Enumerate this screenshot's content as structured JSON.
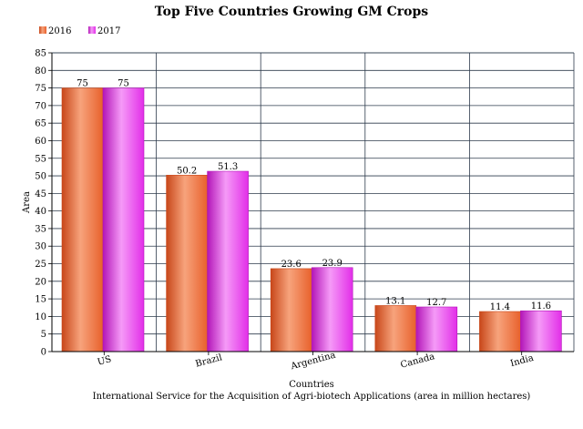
{
  "chart_data": {
    "type": "bar",
    "title": "Top Five Countries Growing GM Crops",
    "categories": [
      "US",
      "Brazil",
      "Argentina",
      "Canada",
      "India"
    ],
    "series": [
      {
        "name": "2016",
        "values": [
          75,
          50.2,
          23.6,
          13.1,
          11.4
        ],
        "labels": [
          "75",
          "50.2",
          "23.6",
          "13.1",
          "11.4"
        ],
        "color": "#e8612c",
        "color_light": "#f7a37c",
        "color_dark": "#c8471a"
      },
      {
        "name": "2017",
        "values": [
          75,
          51.3,
          23.9,
          12.7,
          11.6
        ],
        "labels": [
          "75",
          "51.3",
          "23.9",
          "12.7",
          "11.6"
        ],
        "color": "#e22ee8",
        "color_light": "#f59af7",
        "color_dark": "#b316b8"
      }
    ],
    "xlabel": "Countries",
    "ylabel": "Area",
    "subtitle": "International Service for the Acquisition of Agri-biotech Applications (area in million hectares)",
    "ylim": [
      0,
      85
    ],
    "ytick_step": 5,
    "grid": true,
    "legend_position": "top-left"
  }
}
